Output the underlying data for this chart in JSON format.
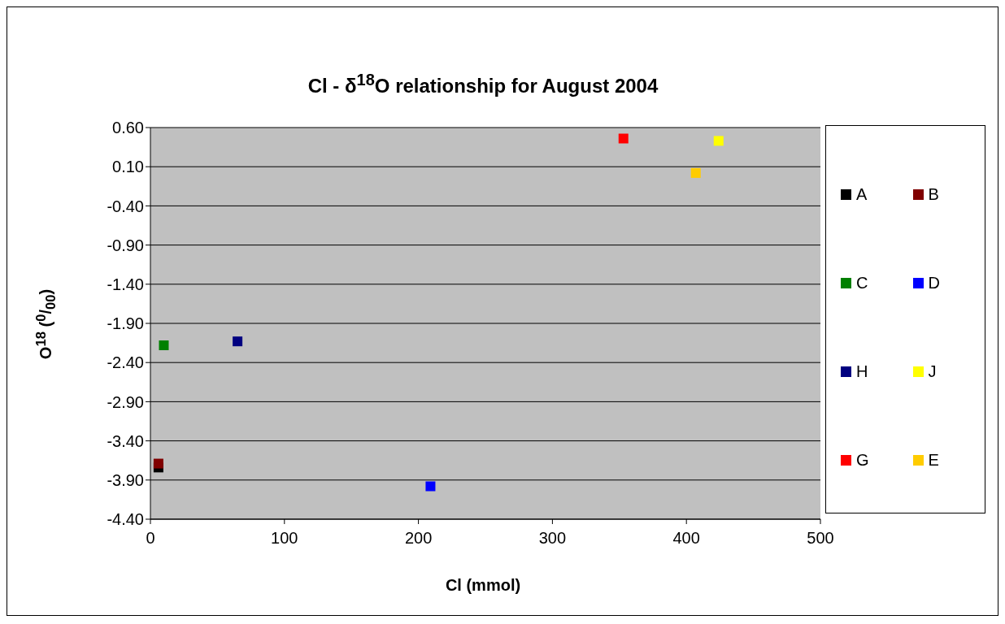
{
  "chart_data": {
    "type": "scatter",
    "title": "Cl - δ$^{18}$O relationship for August 2004",
    "xlabel": "Cl (mmol)",
    "ylabel": "O$^{18}$ ($^{0}$/$_{00}$)",
    "xlim": [
      0,
      500
    ],
    "xticks": [
      0,
      100,
      200,
      300,
      400,
      500
    ],
    "ylim": [
      -4.4,
      0.6
    ],
    "yticks": [
      {
        "value": 0.6,
        "label": "0.60"
      },
      {
        "value": 0.1,
        "label": "0.10"
      },
      {
        "value": -0.4,
        "label": "-0.40"
      },
      {
        "value": -0.9,
        "label": "-0.90"
      },
      {
        "value": -1.4,
        "label": "-1.40"
      },
      {
        "value": -1.9,
        "label": "-1.90"
      },
      {
        "value": -2.4,
        "label": "-2.40"
      },
      {
        "value": -2.9,
        "label": "-2.90"
      },
      {
        "value": -3.4,
        "label": "-3.40"
      },
      {
        "value": -3.9,
        "label": "-3.90"
      },
      {
        "value": -4.4,
        "label": "-4.40"
      }
    ],
    "grid": "y",
    "legend": "right",
    "marker": "square",
    "series": [
      {
        "name": "A",
        "color": "#000000",
        "x": [
          6
        ],
        "values": [
          -3.74
        ]
      },
      {
        "name": "B",
        "color": "#800000",
        "x": [
          6
        ],
        "values": [
          -3.69
        ]
      },
      {
        "name": "C",
        "color": "#008000",
        "x": [
          10
        ],
        "values": [
          -2.18
        ]
      },
      {
        "name": "D",
        "color": "#0000ff",
        "x": [
          209
        ],
        "values": [
          -3.98
        ]
      },
      {
        "name": "H",
        "color": "#000080",
        "x": [
          65
        ],
        "values": [
          -2.13
        ]
      },
      {
        "name": "J",
        "color": "#ffff00",
        "x": [
          424
        ],
        "values": [
          0.43
        ]
      },
      {
        "name": "G",
        "color": "#ff0000",
        "x": [
          353
        ],
        "values": [
          0.46
        ]
      },
      {
        "name": "E",
        "color": "#ffcc00",
        "x": [
          407
        ],
        "values": [
          0.02
        ]
      }
    ]
  }
}
